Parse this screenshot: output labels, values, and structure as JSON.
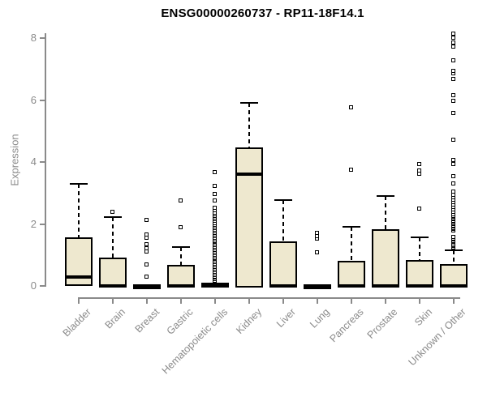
{
  "colors": {
    "box_fill": "#EEE8CF",
    "line": "#000000",
    "axis": "#8A8A8A",
    "label": "#8A8A8A",
    "title": "#000000",
    "background": "#FFFFFF"
  },
  "chart_data": {
    "type": "boxplot",
    "title": "ENSG00000260737 - RP11-18F14.1",
    "xlabel": "",
    "ylabel": "Expression",
    "ylim": [
      0,
      8
    ],
    "yticks": [
      0,
      2,
      4,
      6,
      8
    ],
    "grid": false,
    "legend": "none",
    "categories": [
      "Bladder",
      "Brain",
      "Breast",
      "Gastric",
      "Hematopoietic cells",
      "Kidney",
      "Liver",
      "Lung",
      "Pancreas",
      "Prostate",
      "Skin",
      "Unknown / Other"
    ],
    "series": [
      {
        "category": "Bladder",
        "whisker_low": 0,
        "q1": 0.05,
        "median": 0.3,
        "q3": 1.55,
        "whisker_high": 3.3,
        "outliers": []
      },
      {
        "category": "Brain",
        "whisker_low": 0,
        "q1": 0,
        "median": 0,
        "q3": 0.9,
        "whisker_high": 2.22,
        "outliers": [
          2.39
        ]
      },
      {
        "category": "Breast",
        "whisker_low": 0,
        "q1": 0,
        "median": 0,
        "q3": 0,
        "whisker_high": 0,
        "outliers": [
          0.3,
          0.69,
          1.1,
          1.2,
          1.34,
          1.55,
          1.65,
          2.13
        ]
      },
      {
        "category": "Gastric",
        "whisker_low": 0,
        "q1": 0,
        "median": 0,
        "q3": 0.65,
        "whisker_high": 1.25,
        "outliers": [
          1.87,
          2.74
        ]
      },
      {
        "category": "Hematopoietic cells",
        "whisker_low": 0,
        "q1": 0,
        "median": 0,
        "q3": 0.08,
        "whisker_high": 0.08,
        "outliers": [
          0.15,
          0.2,
          0.25,
          0.3,
          0.35,
          0.4,
          0.45,
          0.5,
          0.55,
          0.6,
          0.65,
          0.7,
          0.75,
          0.8,
          0.85,
          0.9,
          0.95,
          1.0,
          1.05,
          1.1,
          1.15,
          1.2,
          1.25,
          1.3,
          1.35,
          1.4,
          1.45,
          1.5,
          1.55,
          1.6,
          1.65,
          1.7,
          1.75,
          1.8,
          1.85,
          1.9,
          1.95,
          2.02,
          2.1,
          2.15,
          2.2,
          2.25,
          2.3,
          2.35,
          2.42,
          2.52,
          2.74,
          2.96,
          3.22,
          3.66
        ]
      },
      {
        "category": "Kidney",
        "whisker_low": 0,
        "q1": 0,
        "median": 3.6,
        "q3": 4.45,
        "whisker_high": 5.9,
        "outliers": []
      },
      {
        "category": "Liver",
        "whisker_low": 0,
        "q1": 0,
        "median": 0,
        "q3": 1.4,
        "whisker_high": 2.78,
        "outliers": []
      },
      {
        "category": "Lung",
        "whisker_low": 0,
        "q1": 0,
        "median": 0,
        "q3": 0,
        "whisker_high": 0,
        "outliers": [
          1.08,
          1.52,
          1.6,
          1.69
        ]
      },
      {
        "category": "Pancreas",
        "whisker_low": 0,
        "q1": 0,
        "median": 0,
        "q3": 0.78,
        "whisker_high": 1.91,
        "outliers": [
          3.74,
          5.75
        ]
      },
      {
        "category": "Prostate",
        "whisker_low": 0,
        "q1": 0,
        "median": 0,
        "q3": 1.8,
        "whisker_high": 2.91,
        "outliers": []
      },
      {
        "category": "Skin",
        "whisker_low": 0,
        "q1": 0,
        "median": 0,
        "q3": 0.8,
        "whisker_high": 1.56,
        "outliers": [
          2.48,
          3.62,
          3.72,
          3.92
        ]
      },
      {
        "category": "Unknown / Other",
        "whisker_low": 0,
        "q1": 0,
        "median": 0,
        "q3": 0.68,
        "whisker_high": 1.15,
        "outliers": [
          1.2,
          1.24,
          1.28,
          1.32,
          1.36,
          1.4,
          1.44,
          1.48,
          1.52,
          1.56,
          1.78,
          1.82,
          1.86,
          1.9,
          1.94,
          1.98,
          2.02,
          2.06,
          2.1,
          2.14,
          2.18,
          2.22,
          2.26,
          2.3,
          2.38,
          2.46,
          2.54,
          2.62,
          2.7,
          2.78,
          2.86,
          2.94,
          3.02,
          3.3,
          3.52,
          3.92,
          4.05,
          4.7,
          5.58,
          5.97,
          6.14,
          6.67,
          6.84,
          6.93,
          7.28,
          7.7,
          7.85,
          8.0,
          8.12
        ]
      }
    ]
  }
}
